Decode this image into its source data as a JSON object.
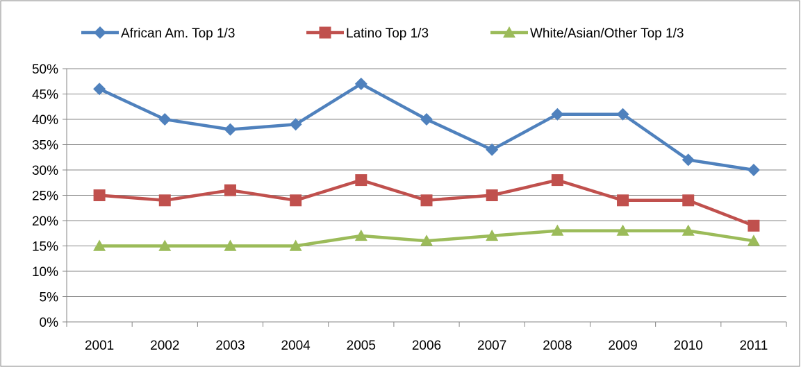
{
  "chart_data": {
    "type": "line",
    "title": "",
    "xlabel": "",
    "ylabel": "",
    "categories": [
      "2001",
      "2002",
      "2003",
      "2004",
      "2005",
      "2006",
      "2007",
      "2008",
      "2009",
      "2010",
      "2011"
    ],
    "ylim": [
      0,
      50
    ],
    "yticks": [
      0,
      5,
      10,
      15,
      20,
      25,
      30,
      35,
      40,
      45,
      50
    ],
    "ytick_labels": [
      "0%",
      "5%",
      "10%",
      "15%",
      "20%",
      "25%",
      "30%",
      "35%",
      "40%",
      "45%",
      "50%"
    ],
    "grid": "horizontal",
    "legend_position": "top",
    "series": [
      {
        "name": "African Am. Top 1/3",
        "color": "#4F81BD",
        "marker": "diamond",
        "values": [
          46,
          40,
          38,
          39,
          47,
          40,
          34,
          41,
          41,
          32,
          30
        ]
      },
      {
        "name": "Latino Top 1/3",
        "color": "#C0504D",
        "marker": "square",
        "values": [
          25,
          24,
          26,
          24,
          28,
          24,
          25,
          28,
          24,
          24,
          19
        ]
      },
      {
        "name": "White/Asian/Other Top 1/3",
        "color": "#9BBB59",
        "marker": "triangle",
        "values": [
          15,
          15,
          15,
          15,
          17,
          16,
          17,
          18,
          18,
          18,
          16
        ]
      }
    ]
  }
}
